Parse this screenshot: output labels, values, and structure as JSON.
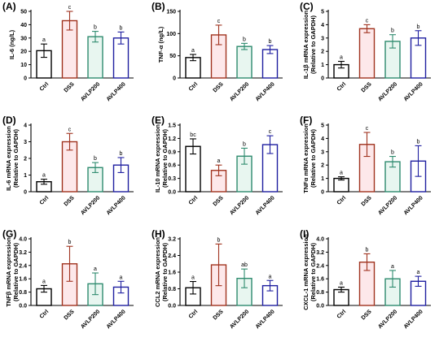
{
  "colors": {
    "Ctrl": "#000000",
    "DSS": "#a0321e",
    "AVLP200": "#2e8b6e",
    "AVLP400": "#1f1fa0",
    "DSS_fill": "#fde8ea",
    "AVLP200_fill": "#e8f6f0"
  },
  "chart_data": [
    {
      "type": "bar",
      "panel": "(A)",
      "ylabel": [
        "IL-6 (ng/L)"
      ],
      "yticks": [
        "0",
        "10",
        "20",
        "30",
        "40",
        "50"
      ],
      "ylim": [
        0,
        50
      ],
      "categories": [
        "Ctrl",
        "DSS",
        "AVLP200",
        "AVLP400"
      ],
      "values": [
        20.5,
        43,
        31,
        30
      ],
      "errors": [
        5,
        7,
        4,
        4.5
      ],
      "letters": [
        "a",
        "c",
        "b",
        "b"
      ]
    },
    {
      "type": "bar",
      "panel": "(B)",
      "ylabel": [
        "TNF-α (ng/L)"
      ],
      "yticks": [
        "0",
        "50",
        "100",
        "150"
      ],
      "ylim": [
        0,
        150
      ],
      "categories": [
        "Ctrl",
        "DSS",
        "AVLP200",
        "AVLP400"
      ],
      "values": [
        46,
        97,
        71,
        64
      ],
      "errors": [
        7,
        22,
        7,
        9
      ],
      "letters": [
        "a",
        "c",
        "b",
        "b"
      ]
    },
    {
      "type": "bar",
      "panel": "(C)",
      "ylabel": [
        "IL-1β mRNA expression",
        "(Relative to GAPDH)"
      ],
      "yticks": [
        "0",
        "1",
        "2",
        "3",
        "4",
        "5"
      ],
      "ylim": [
        0,
        5
      ],
      "categories": [
        "Ctrl",
        "DSS",
        "AVLP200",
        "AVLP400"
      ],
      "values": [
        1.0,
        3.7,
        2.75,
        3.0
      ],
      "errors": [
        0.25,
        0.3,
        0.5,
        0.55
      ],
      "letters": [
        "a",
        "c",
        "b",
        "b"
      ]
    },
    {
      "type": "bar",
      "panel": "(D)",
      "ylabel": [
        "IL-6 mRNA expression",
        "(Relative to GAPDH)"
      ],
      "yticks": [
        "0",
        "1",
        "2",
        "3",
        "4"
      ],
      "ylim": [
        0,
        4
      ],
      "categories": [
        "Ctrl",
        "DSS",
        "AVLP200",
        "AVLP400"
      ],
      "values": [
        0.6,
        3.0,
        1.45,
        1.6
      ],
      "errors": [
        0.15,
        0.5,
        0.3,
        0.45
      ],
      "letters": [
        "a",
        "c",
        "b",
        "b"
      ]
    },
    {
      "type": "bar",
      "panel": "(E)",
      "ylabel": [
        "IL-10 mRNA expression",
        "(Relative to GAPDH)"
      ],
      "yticks": [
        "0.0",
        "0.3",
        "0.6",
        "0.9",
        "1.2",
        "1.5"
      ],
      "ylim": [
        0,
        1.5
      ],
      "categories": [
        "Ctrl",
        "DSS",
        "AVLP200",
        "AVLP400"
      ],
      "values": [
        1.02,
        0.48,
        0.8,
        1.06
      ],
      "errors": [
        0.17,
        0.12,
        0.18,
        0.2
      ],
      "letters": [
        "bc",
        "a",
        "b",
        "c"
      ]
    },
    {
      "type": "bar",
      "panel": "(F)",
      "ylabel": [
        "TNFα mRNA expression",
        "(Relative to GAPDH)"
      ],
      "yticks": [
        "0",
        "1",
        "2",
        "3",
        "4",
        "5"
      ],
      "ylim": [
        0,
        5
      ],
      "categories": [
        "Ctrl",
        "DSS",
        "AVLP200",
        "AVLP400"
      ],
      "values": [
        1.0,
        3.55,
        2.25,
        2.3
      ],
      "errors": [
        0.12,
        0.9,
        0.4,
        1.15
      ],
      "letters": [
        "a",
        "c",
        "b",
        "b"
      ]
    },
    {
      "type": "bar",
      "panel": "(G)",
      "ylabel": [
        "TNFβ mRNA expression",
        "(Relative to GAPDH)"
      ],
      "yticks": [
        "0.0",
        "0.8",
        "1.6",
        "2.4",
        "3.2",
        "4.0"
      ],
      "ylim": [
        0,
        4
      ],
      "categories": [
        "Ctrl",
        "DSS",
        "AVLP200",
        "AVLP400"
      ],
      "values": [
        1.0,
        2.5,
        1.3,
        1.1
      ],
      "errors": [
        0.2,
        1.05,
        0.65,
        0.35
      ],
      "letters": [
        "a",
        "b",
        "a",
        "a"
      ]
    },
    {
      "type": "bar",
      "panel": "(H)",
      "ylabel": [
        "CCL2 mRNA expression",
        "(Relative to GAPDH)"
      ],
      "yticks": [
        "0.0",
        "0.8",
        "1.6",
        "2.4",
        "3.2"
      ],
      "ylim": [
        0,
        3.2
      ],
      "categories": [
        "Ctrl",
        "DSS",
        "AVLP200",
        "AVLP400"
      ],
      "values": [
        0.85,
        1.95,
        1.3,
        0.95
      ],
      "errors": [
        0.3,
        1.0,
        0.45,
        0.25
      ],
      "letters": [
        "a",
        "b",
        "ab",
        "a"
      ]
    },
    {
      "type": "bar",
      "panel": "(I)",
      "ylabel": [
        "CXCL-1 mRNA expression",
        "(Relative to GAPDH)"
      ],
      "yticks": [
        "0.0",
        "0.8",
        "1.6",
        "2.4",
        "3.2",
        "4.0"
      ],
      "ylim": [
        0,
        4
      ],
      "categories": [
        "Ctrl",
        "DSS",
        "AVLP200",
        "AVLP400"
      ],
      "values": [
        0.95,
        2.6,
        1.6,
        1.45
      ],
      "errors": [
        0.15,
        0.5,
        0.5,
        0.3
      ],
      "letters": [
        "a",
        "b",
        "a",
        "a"
      ]
    }
  ]
}
